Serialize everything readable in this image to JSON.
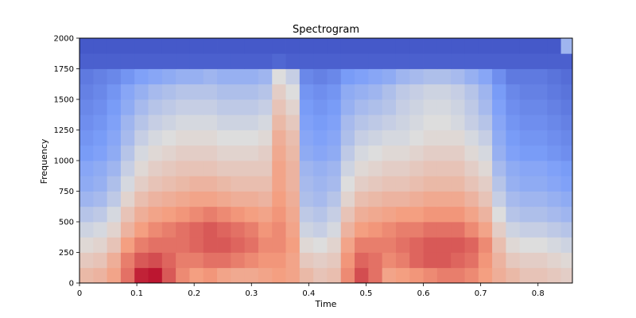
{
  "chart_data": {
    "type": "heatmap",
    "title": "Spectrogram",
    "xlabel": "Time",
    "ylabel": "Frequency",
    "xlim": [
      0,
      0.86
    ],
    "ylim": [
      0,
      2000
    ],
    "x_ticks": [
      0,
      0.1,
      0.2,
      0.3,
      0.4,
      0.5,
      0.6,
      0.7,
      0.8
    ],
    "x_tick_labels": [
      "0",
      "0.1",
      "0.2",
      "0.3",
      "0.4",
      "0.5",
      "0.6",
      "0.7",
      "0.8"
    ],
    "y_ticks": [
      0,
      250,
      500,
      750,
      1000,
      1250,
      1500,
      1750,
      2000
    ],
    "y_tick_labels": [
      "0",
      "250",
      "500",
      "750",
      "1000",
      "1250",
      "1500",
      "1750",
      "2000"
    ],
    "colormap": "coolwarm",
    "grid": false,
    "legend": "none",
    "time_columns": [
      0.012,
      0.036,
      0.06,
      0.084,
      0.108,
      0.132,
      0.156,
      0.18,
      0.204,
      0.228,
      0.252,
      0.276,
      0.3,
      0.324,
      0.348,
      0.372,
      0.396,
      0.42,
      0.444,
      0.468,
      0.492,
      0.516,
      0.54,
      0.564,
      0.588,
      0.612,
      0.636,
      0.66,
      0.684,
      0.708,
      0.732,
      0.756,
      0.78,
      0.804,
      0.828,
      0.852
    ],
    "frequency_rows": [
      62.5,
      187.5,
      312.5,
      437.5,
      562.5,
      687.5,
      812.5,
      937.5,
      1062.5,
      1187.5,
      1312.5,
      1437.5,
      1562.5,
      1687.5,
      1812.5,
      1937.5
    ],
    "intensity_matrix": [
      [
        0.64,
        0.66,
        0.72,
        0.82,
        0.95,
        0.97,
        0.86,
        0.78,
        0.74,
        0.76,
        0.72,
        0.7,
        0.7,
        0.72,
        0.74,
        0.72,
        0.64,
        0.6,
        0.62,
        0.78,
        0.88,
        0.82,
        0.72,
        0.74,
        0.76,
        0.78,
        0.8,
        0.8,
        0.78,
        0.74,
        0.68,
        0.64,
        0.6,
        0.6,
        0.58,
        0.56
      ],
      [
        0.58,
        0.6,
        0.68,
        0.8,
        0.86,
        0.88,
        0.84,
        0.8,
        0.8,
        0.82,
        0.82,
        0.8,
        0.78,
        0.76,
        0.76,
        0.72,
        0.58,
        0.56,
        0.58,
        0.76,
        0.84,
        0.82,
        0.78,
        0.8,
        0.84,
        0.86,
        0.86,
        0.84,
        0.82,
        0.76,
        0.66,
        0.58,
        0.56,
        0.56,
        0.54,
        0.52
      ],
      [
        0.52,
        0.54,
        0.6,
        0.74,
        0.8,
        0.82,
        0.82,
        0.82,
        0.84,
        0.86,
        0.86,
        0.84,
        0.82,
        0.78,
        0.78,
        0.74,
        0.52,
        0.5,
        0.54,
        0.72,
        0.8,
        0.8,
        0.8,
        0.82,
        0.84,
        0.86,
        0.86,
        0.86,
        0.84,
        0.78,
        0.62,
        0.52,
        0.5,
        0.5,
        0.48,
        0.46
      ],
      [
        0.46,
        0.48,
        0.54,
        0.66,
        0.74,
        0.78,
        0.8,
        0.82,
        0.84,
        0.86,
        0.84,
        0.82,
        0.8,
        0.76,
        0.78,
        0.72,
        0.46,
        0.44,
        0.48,
        0.66,
        0.74,
        0.76,
        0.78,
        0.8,
        0.8,
        0.82,
        0.82,
        0.82,
        0.78,
        0.72,
        0.56,
        0.46,
        0.44,
        0.44,
        0.42,
        0.4
      ],
      [
        0.4,
        0.42,
        0.48,
        0.6,
        0.68,
        0.72,
        0.74,
        0.76,
        0.78,
        0.8,
        0.78,
        0.76,
        0.74,
        0.72,
        0.76,
        0.7,
        0.42,
        0.4,
        0.44,
        0.6,
        0.68,
        0.7,
        0.72,
        0.74,
        0.74,
        0.76,
        0.76,
        0.76,
        0.72,
        0.66,
        0.5,
        0.4,
        0.38,
        0.38,
        0.36,
        0.34
      ],
      [
        0.34,
        0.36,
        0.42,
        0.54,
        0.62,
        0.66,
        0.68,
        0.7,
        0.72,
        0.72,
        0.7,
        0.68,
        0.68,
        0.66,
        0.74,
        0.68,
        0.38,
        0.36,
        0.4,
        0.54,
        0.62,
        0.64,
        0.66,
        0.66,
        0.68,
        0.7,
        0.7,
        0.7,
        0.66,
        0.6,
        0.44,
        0.36,
        0.34,
        0.34,
        0.32,
        0.3
      ],
      [
        0.3,
        0.32,
        0.38,
        0.48,
        0.56,
        0.6,
        0.62,
        0.64,
        0.66,
        0.66,
        0.64,
        0.62,
        0.62,
        0.62,
        0.72,
        0.66,
        0.36,
        0.34,
        0.36,
        0.5,
        0.56,
        0.58,
        0.6,
        0.6,
        0.62,
        0.64,
        0.64,
        0.64,
        0.6,
        0.56,
        0.4,
        0.32,
        0.3,
        0.3,
        0.28,
        0.26
      ],
      [
        0.28,
        0.3,
        0.34,
        0.44,
        0.52,
        0.56,
        0.58,
        0.6,
        0.6,
        0.6,
        0.58,
        0.58,
        0.58,
        0.58,
        0.72,
        0.66,
        0.34,
        0.32,
        0.34,
        0.46,
        0.52,
        0.54,
        0.56,
        0.56,
        0.58,
        0.6,
        0.6,
        0.6,
        0.56,
        0.52,
        0.36,
        0.3,
        0.28,
        0.28,
        0.26,
        0.24
      ],
      [
        0.24,
        0.26,
        0.3,
        0.4,
        0.48,
        0.52,
        0.54,
        0.56,
        0.56,
        0.56,
        0.54,
        0.54,
        0.54,
        0.56,
        0.7,
        0.64,
        0.3,
        0.28,
        0.3,
        0.42,
        0.48,
        0.5,
        0.52,
        0.52,
        0.54,
        0.56,
        0.56,
        0.56,
        0.52,
        0.48,
        0.32,
        0.26,
        0.24,
        0.24,
        0.22,
        0.2
      ],
      [
        0.22,
        0.24,
        0.28,
        0.36,
        0.44,
        0.48,
        0.5,
        0.52,
        0.52,
        0.52,
        0.5,
        0.5,
        0.5,
        0.52,
        0.68,
        0.62,
        0.28,
        0.26,
        0.28,
        0.38,
        0.44,
        0.46,
        0.48,
        0.48,
        0.5,
        0.52,
        0.52,
        0.52,
        0.48,
        0.44,
        0.3,
        0.24,
        0.22,
        0.22,
        0.2,
        0.18
      ],
      [
        0.2,
        0.22,
        0.26,
        0.34,
        0.4,
        0.44,
        0.46,
        0.48,
        0.48,
        0.48,
        0.46,
        0.46,
        0.46,
        0.48,
        0.64,
        0.58,
        0.26,
        0.24,
        0.26,
        0.36,
        0.4,
        0.42,
        0.44,
        0.46,
        0.48,
        0.5,
        0.5,
        0.48,
        0.44,
        0.4,
        0.28,
        0.22,
        0.2,
        0.2,
        0.18,
        0.16
      ],
      [
        0.18,
        0.2,
        0.24,
        0.3,
        0.36,
        0.4,
        0.42,
        0.44,
        0.44,
        0.44,
        0.42,
        0.42,
        0.42,
        0.44,
        0.6,
        0.54,
        0.24,
        0.22,
        0.24,
        0.32,
        0.36,
        0.38,
        0.4,
        0.44,
        0.46,
        0.48,
        0.48,
        0.46,
        0.42,
        0.36,
        0.26,
        0.2,
        0.18,
        0.18,
        0.16,
        0.14
      ],
      [
        0.16,
        0.18,
        0.22,
        0.28,
        0.32,
        0.36,
        0.38,
        0.4,
        0.4,
        0.4,
        0.38,
        0.38,
        0.38,
        0.4,
        0.56,
        0.5,
        0.22,
        0.2,
        0.22,
        0.3,
        0.32,
        0.34,
        0.38,
        0.42,
        0.44,
        0.46,
        0.46,
        0.44,
        0.4,
        0.34,
        0.24,
        0.18,
        0.16,
        0.16,
        0.14,
        0.12
      ],
      [
        0.14,
        0.16,
        0.18,
        0.22,
        0.26,
        0.28,
        0.3,
        0.32,
        0.32,
        0.34,
        0.32,
        0.32,
        0.32,
        0.34,
        0.5,
        0.44,
        0.18,
        0.16,
        0.18,
        0.24,
        0.26,
        0.28,
        0.3,
        0.34,
        0.36,
        0.38,
        0.38,
        0.36,
        0.32,
        0.28,
        0.2,
        0.14,
        0.14,
        0.14,
        0.12,
        0.1
      ],
      [
        0.06,
        0.06,
        0.06,
        0.06,
        0.06,
        0.06,
        0.06,
        0.06,
        0.06,
        0.06,
        0.06,
        0.06,
        0.06,
        0.06,
        0.08,
        0.06,
        0.06,
        0.06,
        0.06,
        0.06,
        0.06,
        0.06,
        0.06,
        0.06,
        0.06,
        0.06,
        0.06,
        0.06,
        0.06,
        0.06,
        0.06,
        0.06,
        0.06,
        0.06,
        0.06,
        0.06
      ],
      [
        0.04,
        0.04,
        0.04,
        0.04,
        0.04,
        0.04,
        0.04,
        0.04,
        0.04,
        0.04,
        0.04,
        0.04,
        0.04,
        0.04,
        0.04,
        0.04,
        0.04,
        0.04,
        0.04,
        0.04,
        0.04,
        0.04,
        0.04,
        0.04,
        0.04,
        0.04,
        0.04,
        0.04,
        0.04,
        0.04,
        0.04,
        0.04,
        0.04,
        0.04,
        0.04,
        0.34
      ]
    ]
  }
}
